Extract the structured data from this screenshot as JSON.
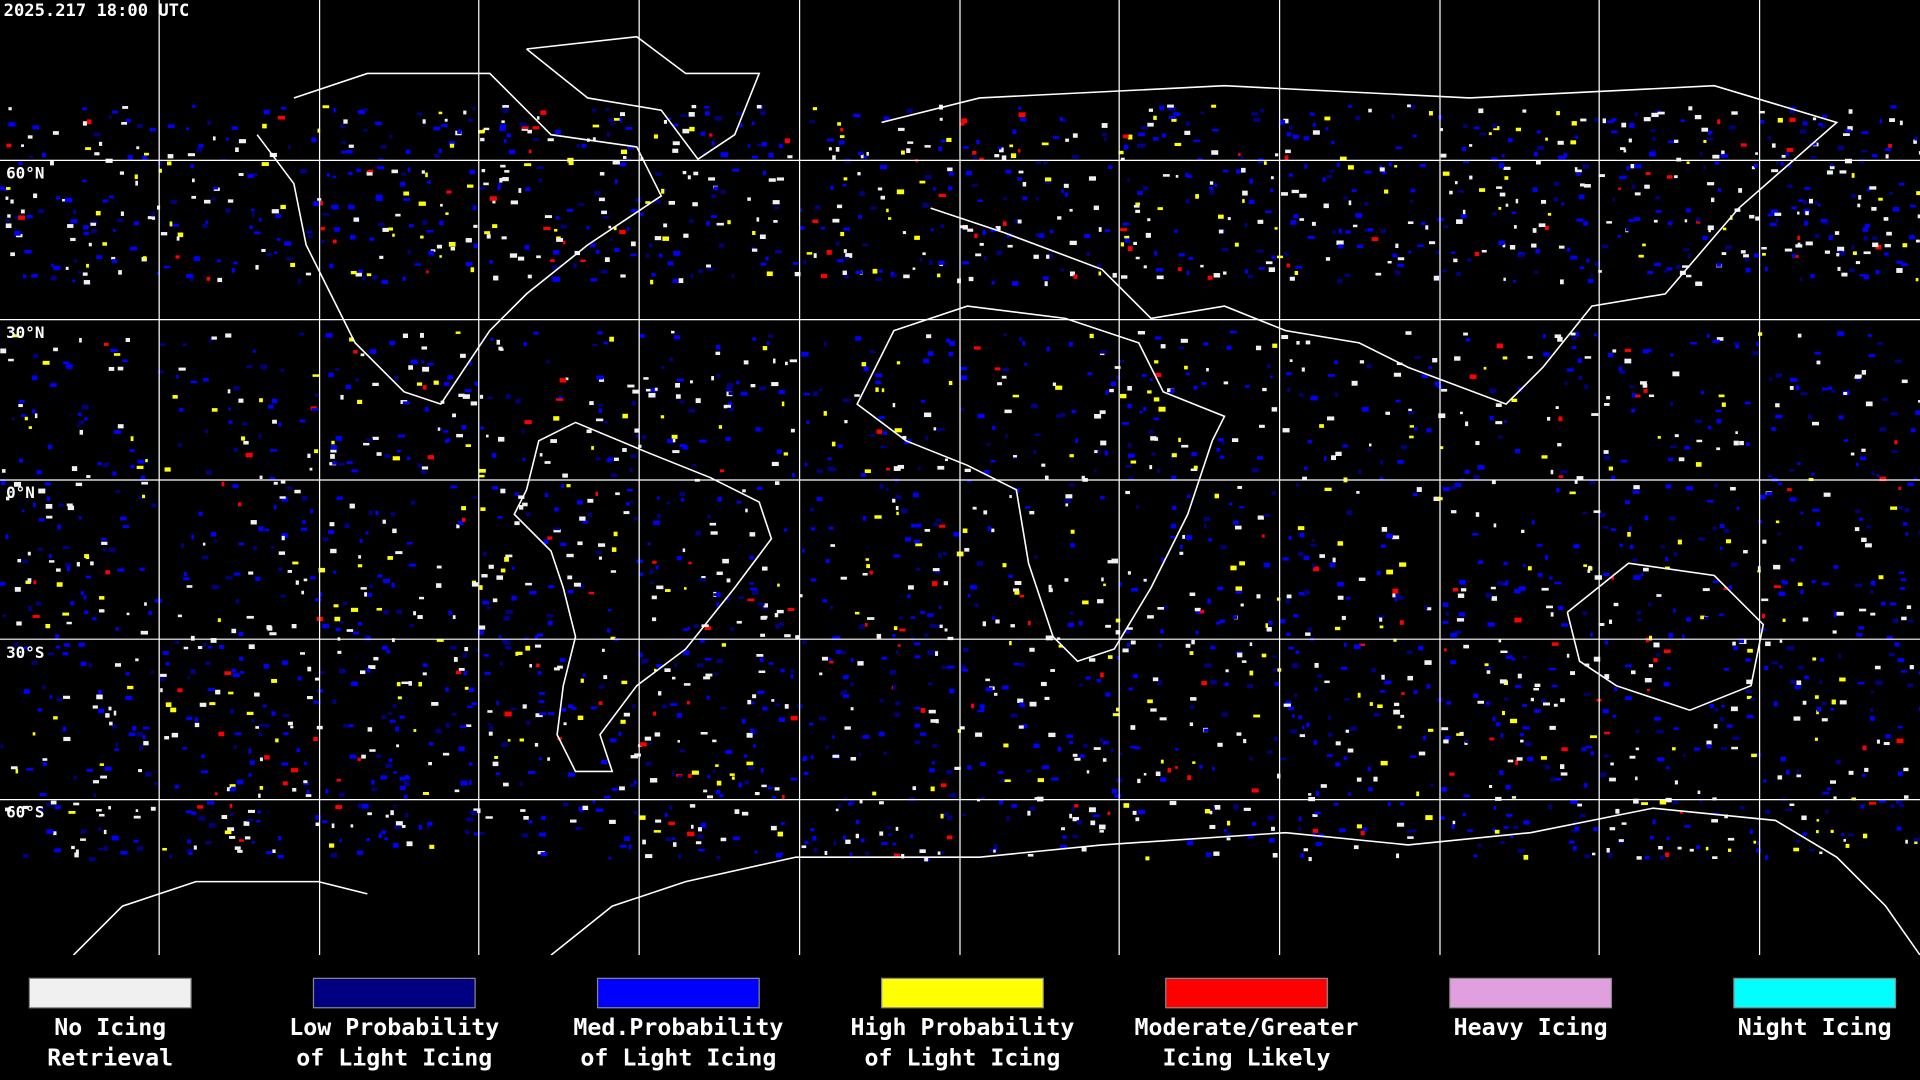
{
  "timestamp": "2025.217 18:00 UTC",
  "latitude_labels": [
    "60°N",
    "30°N",
    "0°N",
    "30°S",
    "60°S"
  ],
  "legend": [
    {
      "lines": [
        "No Icing",
        "Retrieval"
      ],
      "color": "#f0f0f0"
    },
    {
      "lines": [
        "Low Probability",
        "of Light Icing"
      ],
      "color": "#000080"
    },
    {
      "lines": [
        "Med.Probability",
        "of Light Icing"
      ],
      "color": "#0000ff"
    },
    {
      "lines": [
        "High Probability",
        "of Light Icing"
      ],
      "color": "#ffff00"
    },
    {
      "lines": [
        "Moderate/Greater",
        "Icing Likely"
      ],
      "color": "#ff0000"
    },
    {
      "lines": [
        "Heavy Icing"
      ],
      "color": "#e0a0e0"
    },
    {
      "lines": [
        "Night Icing"
      ],
      "color": "#00ffff"
    }
  ]
}
